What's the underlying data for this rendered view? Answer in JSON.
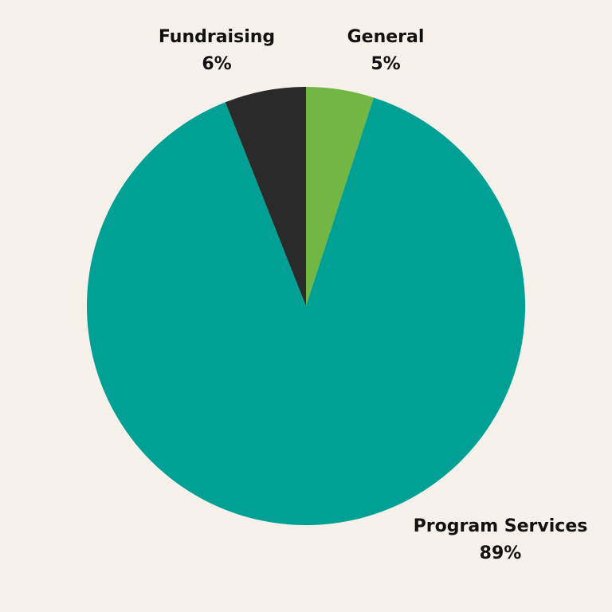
{
  "chart_data": {
    "type": "pie",
    "slices": [
      {
        "label": "General",
        "value": 5,
        "display": "5%",
        "color": "#72b743"
      },
      {
        "label": "Program Services",
        "value": 89,
        "display": "89%",
        "color": "#00a094"
      },
      {
        "label": "Fundraising",
        "value": 6,
        "display": "6%",
        "color": "#2b2a2a"
      }
    ],
    "start": "top",
    "direction": "clockwise",
    "background": "#f7f1ec"
  }
}
